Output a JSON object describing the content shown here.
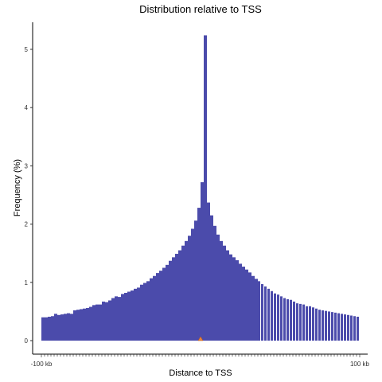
{
  "chart_data": {
    "type": "bar",
    "title": "Distribution relative to TSS",
    "xlabel": "Distance to TSS",
    "ylabel": "Frequency (%)",
    "x_tick_labels": [
      "-100 kb",
      "100 kb"
    ],
    "xlim": [
      -100,
      100
    ],
    "ylim": [
      0,
      5.4
    ],
    "y_ticks": [
      0,
      1,
      2,
      3,
      4,
      5
    ],
    "bin_width_kb": 2,
    "bar_color": "#4b4bab",
    "marker_color": "#e8823a",
    "marker_x": 0,
    "grid": false,
    "legend": "none",
    "values": [
      0.4,
      0.4,
      0.41,
      0.42,
      0.46,
      0.44,
      0.45,
      0.46,
      0.47,
      0.46,
      0.52,
      0.53,
      0.54,
      0.55,
      0.56,
      0.58,
      0.61,
      0.62,
      0.62,
      0.67,
      0.66,
      0.69,
      0.73,
      0.76,
      0.75,
      0.8,
      0.82,
      0.84,
      0.86,
      0.89,
      0.91,
      0.96,
      0.99,
      1.02,
      1.07,
      1.11,
      1.16,
      1.2,
      1.25,
      1.3,
      1.37,
      1.43,
      1.49,
      1.55,
      1.63,
      1.71,
      1.8,
      1.92,
      2.06,
      2.28,
      2.72,
      5.24,
      2.37,
      2.15,
      1.97,
      1.82,
      1.71,
      1.63,
      1.55,
      1.48,
      1.43,
      1.38,
      1.32,
      1.27,
      1.22,
      1.17,
      1.11,
      1.06,
      1.02,
      0.97,
      0.93,
      0.89,
      0.85,
      0.81,
      0.79,
      0.76,
      0.73,
      0.71,
      0.7,
      0.67,
      0.64,
      0.63,
      0.62,
      0.59,
      0.59,
      0.57,
      0.55,
      0.53,
      0.52,
      0.51,
      0.5,
      0.49,
      0.48,
      0.47,
      0.46,
      0.45,
      0.44,
      0.43,
      0.42,
      0.41
    ]
  }
}
